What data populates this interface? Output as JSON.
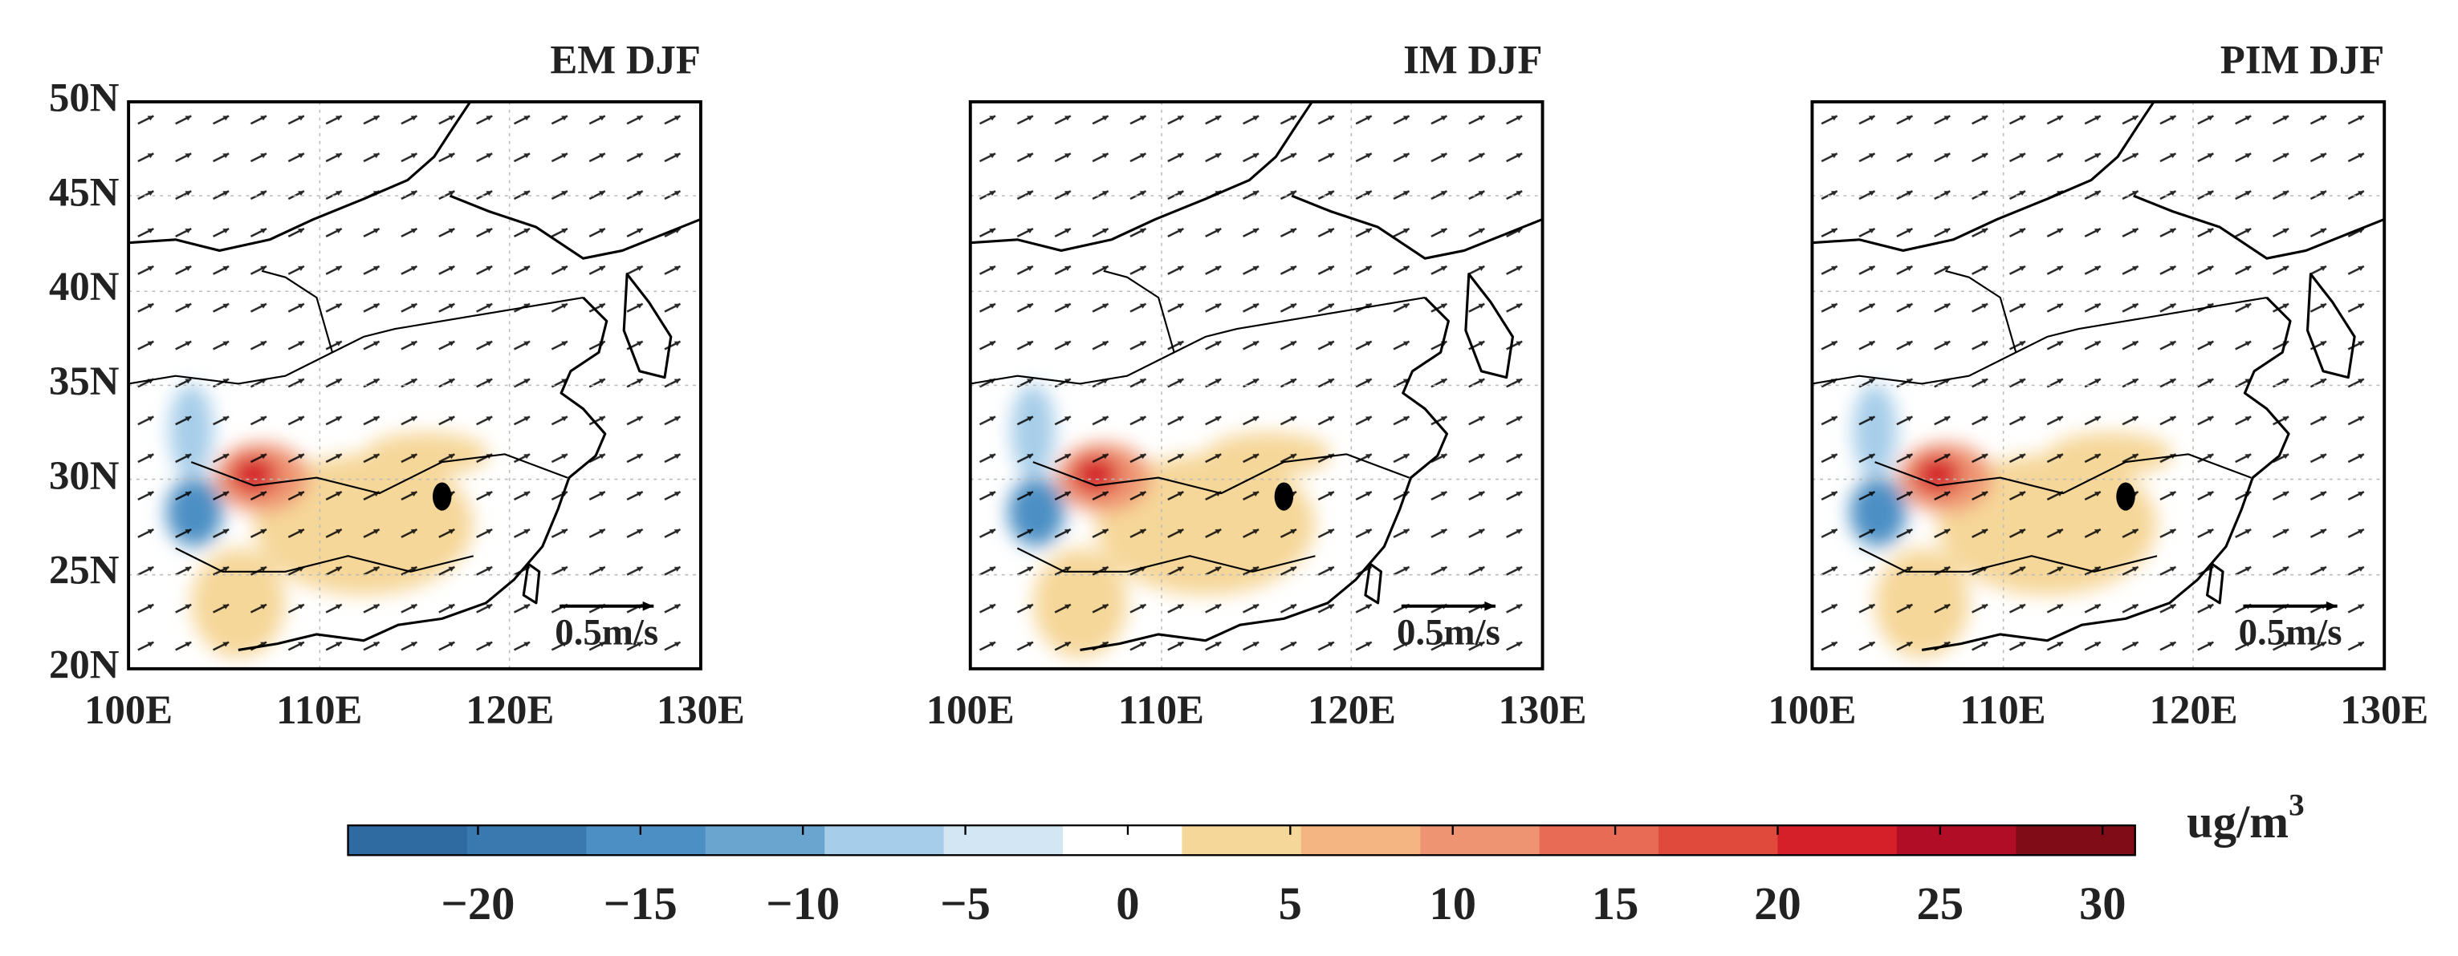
{
  "panels": [
    {
      "title": "EM DJF"
    },
    {
      "title": "IM DJF"
    },
    {
      "title": "PIM DJF"
    }
  ],
  "lat_ticks": [
    "50N",
    "45N",
    "40N",
    "35N",
    "30N",
    "25N",
    "20N"
  ],
  "lon_ticks": [
    "100E",
    "110E",
    "120E",
    "130E"
  ],
  "reference_vector_label": "0.5m/s",
  "colorbar": {
    "lim": [
      -24,
      31
    ],
    "ticks": [
      {
        "value": -20,
        "label": "−20"
      },
      {
        "value": -15,
        "label": "−15"
      },
      {
        "value": -10,
        "label": "−10"
      },
      {
        "value": -5,
        "label": "−5"
      },
      0,
      5,
      10,
      15,
      20,
      25,
      30
    ],
    "colors": [
      "#2f6aa0",
      "#3a78b0",
      "#4b8fc4",
      "#6aa5d0",
      "#a6cde9",
      "#d3e6f3",
      "#ffffff",
      "#f6d79a",
      "#f4b582",
      "#ef9472",
      "#e86c55",
      "#df4a3c",
      "#d5202a",
      "#b20d26",
      "#7f0c17"
    ],
    "unit": "ug/m",
    "unit_superscript": "3"
  }
}
